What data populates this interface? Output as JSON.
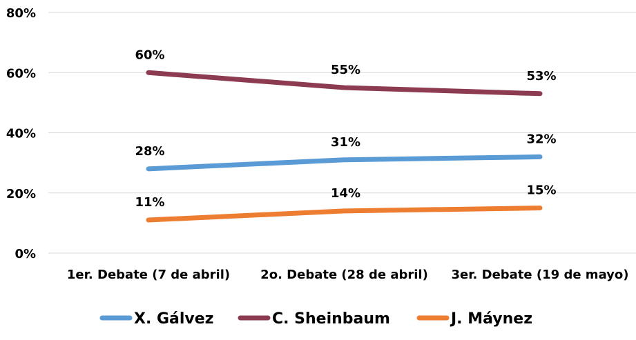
{
  "chart_data": {
    "type": "line",
    "categories": [
      "1er. Debate (7 de abril)",
      "2o. Debate (28 de abril)",
      "3er. Debate (19 de mayo)"
    ],
    "series": [
      {
        "name": "X. Gálvez",
        "color": "#5b9bd5",
        "values": [
          28,
          31,
          32
        ],
        "labels": [
          "28%",
          "31%",
          "32%"
        ]
      },
      {
        "name": "C. Sheinbaum",
        "color": "#8c3b50",
        "values": [
          60,
          55,
          53
        ],
        "labels": [
          "60%",
          "55%",
          "53%"
        ]
      },
      {
        "name": "J. Máynez",
        "color": "#ed7d31",
        "values": [
          11,
          14,
          15
        ],
        "labels": [
          "11%",
          "14%",
          "15%"
        ]
      }
    ],
    "ylim": [
      0,
      80
    ],
    "yticks": [
      0,
      20,
      40,
      60,
      80
    ],
    "ytick_labels": [
      "0%",
      "20%",
      "40%",
      "60%",
      "80%"
    ],
    "grid": true,
    "legend_position": "bottom"
  }
}
